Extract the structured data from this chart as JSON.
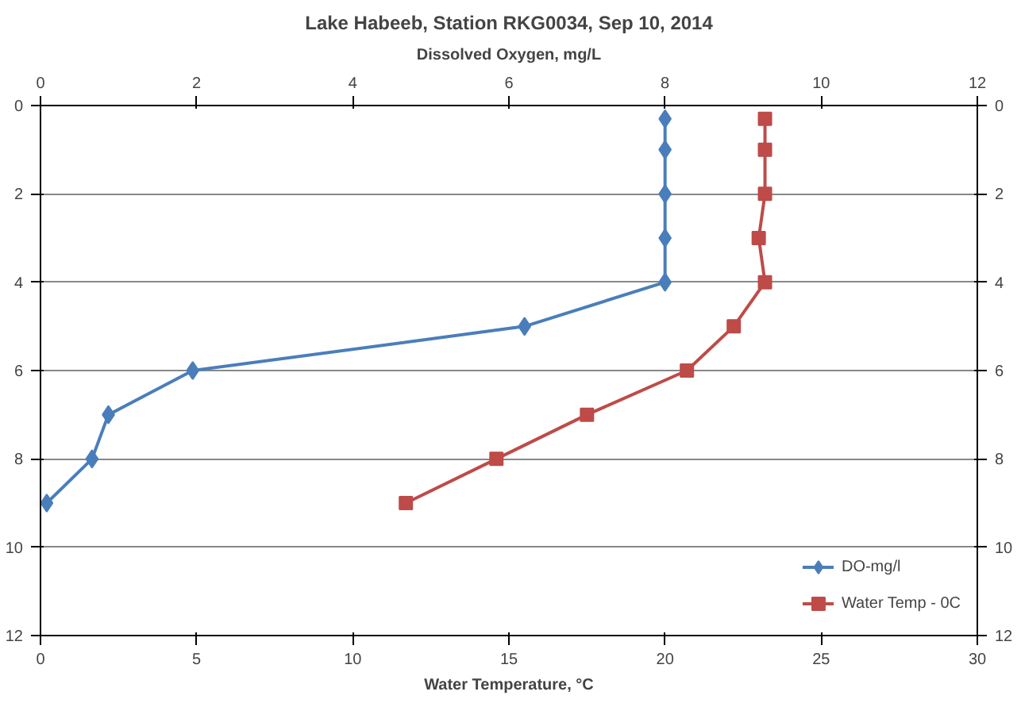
{
  "chart_data": {
    "type": "line",
    "title": "Lake Habeeb, Station RKG0034, Sep 10, 2014",
    "xlabel": "Water Temperature, °C",
    "x2label": "Dissolved Oxygen, mg/L",
    "xlim": [
      0,
      30
    ],
    "xticks": [
      0,
      5,
      10,
      15,
      20,
      25,
      30
    ],
    "x2lim": [
      0,
      12
    ],
    "x2ticks": [
      0,
      2,
      4,
      6,
      8,
      10,
      12
    ],
    "ylim": [
      12,
      0
    ],
    "yticks": [
      0,
      2,
      4,
      6,
      8,
      10,
      12
    ],
    "y2lim": [
      12,
      0
    ],
    "y2ticks": [
      0,
      2,
      4,
      6,
      8,
      10,
      12
    ],
    "grid": "y",
    "legend": "bottom right",
    "series": [
      {
        "name": "DO-mg/l",
        "color": "#4a7ebb",
        "marker": "diamond",
        "axis": "x2",
        "x": [
          8.0,
          8.0,
          8.0,
          8.0,
          8.0,
          6.2,
          1.95,
          0.87,
          0.66,
          0.08
        ],
        "values": [
          0.3,
          1,
          2,
          3,
          4,
          5,
          6,
          7,
          8,
          9
        ]
      },
      {
        "name": "Water Temp - 0C",
        "color": "#be4b48",
        "marker": "square",
        "x": [
          23.2,
          23.2,
          23.2,
          23.0,
          23.2,
          22.2,
          20.7,
          17.5,
          14.6,
          11.7
        ],
        "values": [
          0.3,
          1,
          2,
          3,
          4,
          5,
          6,
          7,
          8,
          9
        ]
      }
    ]
  }
}
